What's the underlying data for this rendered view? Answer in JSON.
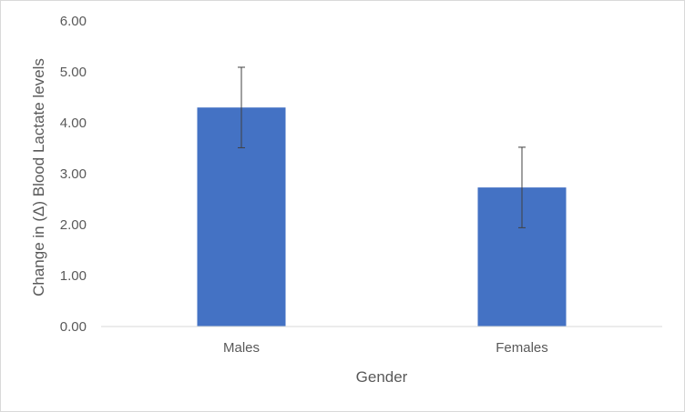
{
  "chart_data": {
    "type": "bar",
    "title": "",
    "xlabel": "Gender",
    "ylabel": "Change in (Δ) Blood Lactate levels",
    "categories": [
      "Males",
      "Females"
    ],
    "values": [
      4.3,
      2.73
    ],
    "error": [
      0.79,
      0.79
    ],
    "ylim": [
      0,
      6
    ],
    "ytick_labels": [
      "0.00",
      "1.00",
      "2.00",
      "3.00",
      "4.00",
      "5.00",
      "6.00"
    ],
    "grid": false,
    "legend": "none",
    "bar_color": "#4472c4",
    "error_bar_color": "#404040",
    "axis_color": "#d9d9d9"
  }
}
